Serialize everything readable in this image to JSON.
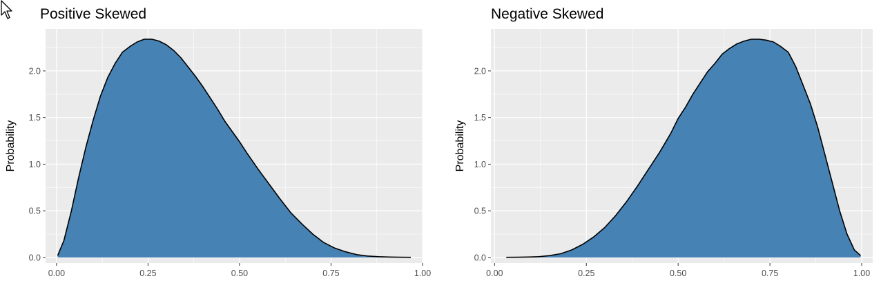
{
  "chart_data": [
    {
      "type": "area",
      "title": "Positive Skewed",
      "xlabel": "",
      "ylabel": "Probability",
      "xlim": [
        -0.03,
        1.0
      ],
      "ylim": [
        -0.06,
        2.45
      ],
      "xticks": [
        "0.00",
        "0.25",
        "0.50",
        "0.75",
        "1.00"
      ],
      "yticks": [
        "0.0",
        "0.5",
        "1.0",
        "1.5",
        "2.0"
      ],
      "fill_color": "#4682B4",
      "line_color": "#000000",
      "panel_color": "#EBEBEB",
      "grid": true,
      "series": [
        {
          "x": [
            0.003,
            0.02,
            0.04,
            0.06,
            0.08,
            0.1,
            0.12,
            0.14,
            0.16,
            0.18,
            0.2,
            0.22,
            0.24,
            0.26,
            0.28,
            0.3,
            0.32,
            0.34,
            0.36,
            0.38,
            0.4,
            0.42,
            0.44,
            0.46,
            0.48,
            0.5,
            0.52,
            0.55,
            0.58,
            0.61,
            0.64,
            0.67,
            0.7,
            0.73,
            0.76,
            0.79,
            0.82,
            0.85,
            0.88,
            0.91,
            0.94,
            0.968
          ],
          "y": [
            0.02,
            0.18,
            0.49,
            0.85,
            1.18,
            1.47,
            1.73,
            1.93,
            2.08,
            2.2,
            2.26,
            2.31,
            2.34,
            2.34,
            2.32,
            2.28,
            2.22,
            2.14,
            2.04,
            1.94,
            1.83,
            1.71,
            1.59,
            1.46,
            1.35,
            1.24,
            1.12,
            0.95,
            0.79,
            0.63,
            0.48,
            0.36,
            0.25,
            0.16,
            0.1,
            0.06,
            0.03,
            0.015,
            0.008,
            0.004,
            0.002,
            0.001
          ]
        }
      ]
    },
    {
      "type": "area",
      "title": "Negative Skewed",
      "xlabel": "",
      "ylabel": "Probability",
      "xlim": [
        -0.01,
        1.03
      ],
      "ylim": [
        -0.06,
        2.45
      ],
      "xticks": [
        "0.00",
        "0.25",
        "0.50",
        "0.75",
        "1.00"
      ],
      "yticks": [
        "0.0",
        "0.5",
        "1.0",
        "1.5",
        "2.0"
      ],
      "fill_color": "#4682B4",
      "line_color": "#000000",
      "panel_color": "#EBEBEB",
      "grid": true,
      "series": [
        {
          "x": [
            0.032,
            0.06,
            0.09,
            0.12,
            0.15,
            0.18,
            0.21,
            0.24,
            0.27,
            0.3,
            0.33,
            0.36,
            0.39,
            0.42,
            0.45,
            0.48,
            0.5,
            0.52,
            0.54,
            0.56,
            0.58,
            0.6,
            0.62,
            0.64,
            0.66,
            0.68,
            0.7,
            0.72,
            0.74,
            0.76,
            0.78,
            0.8,
            0.82,
            0.84,
            0.86,
            0.88,
            0.9,
            0.92,
            0.94,
            0.96,
            0.98,
            0.997
          ],
          "y": [
            0.001,
            0.002,
            0.004,
            0.008,
            0.02,
            0.04,
            0.08,
            0.14,
            0.22,
            0.32,
            0.45,
            0.6,
            0.77,
            0.95,
            1.13,
            1.33,
            1.49,
            1.61,
            1.75,
            1.87,
            1.99,
            2.08,
            2.18,
            2.24,
            2.29,
            2.32,
            2.34,
            2.34,
            2.33,
            2.31,
            2.26,
            2.2,
            2.05,
            1.85,
            1.65,
            1.4,
            1.1,
            0.8,
            0.5,
            0.25,
            0.08,
            0.02
          ]
        }
      ]
    }
  ]
}
